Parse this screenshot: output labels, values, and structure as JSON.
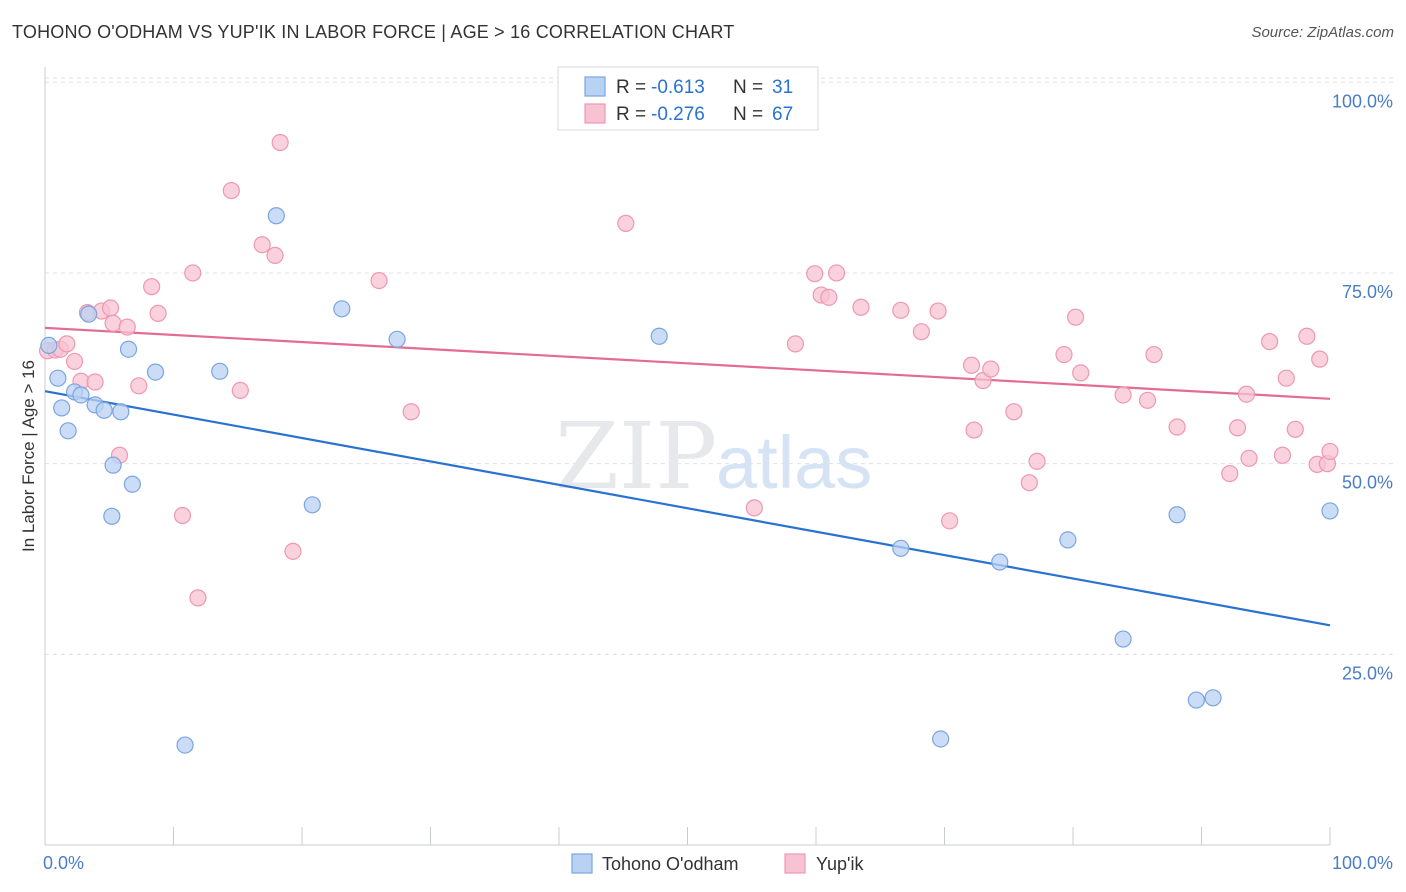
{
  "title": "TOHONO O'ODHAM VS YUP'IK IN LABOR FORCE | AGE > 16 CORRELATION CHART",
  "source": "Source: ZipAtlas.com",
  "watermark": {
    "zip": "ZIP",
    "atlas": "atlas"
  },
  "colors": {
    "blue_fill": "#b9d2f3",
    "blue_stroke": "#7aa5e0",
    "blue_line": "#2a72d2",
    "pink_fill": "#f7c3d3",
    "pink_stroke": "#ee97b3",
    "pink_line": "#e46b93",
    "tick": "#4a7cc9",
    "grid": "#dde0e6"
  },
  "legend": {
    "rows": [
      {
        "r_label": "R = ",
        "r_value": "-0.613",
        "n_label": "N = ",
        "n_value": "31"
      },
      {
        "r_label": "R = ",
        "r_value": "-0.276",
        "n_label": "N = ",
        "n_value": "67"
      }
    ]
  },
  "chart_data": {
    "type": "scatter",
    "title": "TOHONO O'ODHAM VS YUP'IK IN LABOR FORCE | AGE > 16 CORRELATION CHART",
    "xlabel": "",
    "ylabel": "In Labor Force | Age > 16",
    "xlim": [
      0,
      100
    ],
    "ylim": [
      0,
      102
    ],
    "x_tick_labels": [
      "0.0%",
      "100.0%"
    ],
    "y_ticks": [
      25,
      50,
      75,
      100
    ],
    "y_tick_labels": [
      "25.0%",
      "50.0%",
      "75.0%",
      "100.0%"
    ],
    "grid": true,
    "legend_position": "top-center",
    "series": [
      {
        "name": "Tohono O'odham",
        "color": "#b9d2f3",
        "trend": {
          "x": [
            0,
            100
          ],
          "y": [
            59.5,
            28.8
          ]
        },
        "points": [
          [
            0.3,
            65.5
          ],
          [
            1.0,
            61.2
          ],
          [
            1.3,
            57.3
          ],
          [
            1.8,
            54.3
          ],
          [
            2.3,
            59.4
          ],
          [
            2.8,
            59.0
          ],
          [
            3.4,
            69.6
          ],
          [
            3.9,
            57.7
          ],
          [
            4.6,
            57.0
          ],
          [
            5.2,
            43.1
          ],
          [
            5.3,
            49.8
          ],
          [
            5.9,
            56.8
          ],
          [
            6.5,
            65.0
          ],
          [
            6.8,
            47.3
          ],
          [
            8.6,
            62.0
          ],
          [
            10.9,
            13.1
          ],
          [
            13.6,
            62.1
          ],
          [
            18.0,
            82.5
          ],
          [
            20.8,
            44.6
          ],
          [
            23.1,
            70.3
          ],
          [
            27.4,
            66.3
          ],
          [
            47.8,
            66.7
          ],
          [
            66.6,
            38.9
          ],
          [
            69.7,
            13.9
          ],
          [
            74.3,
            37.1
          ],
          [
            79.6,
            40.0
          ],
          [
            83.9,
            27.0
          ],
          [
            88.1,
            43.3
          ],
          [
            89.6,
            19.0
          ],
          [
            90.9,
            19.3
          ],
          [
            100.0,
            43.8
          ]
        ]
      },
      {
        "name": "Yup'ik",
        "color": "#f7c3d3",
        "trend": {
          "x": [
            0,
            100
          ],
          "y": [
            67.8,
            58.5
          ]
        },
        "points": [
          [
            0.2,
            64.8
          ],
          [
            0.8,
            64.9
          ],
          [
            1.2,
            65.0
          ],
          [
            1.7,
            65.7
          ],
          [
            2.3,
            63.4
          ],
          [
            2.8,
            60.8
          ],
          [
            3.3,
            69.8
          ],
          [
            3.9,
            60.7
          ],
          [
            4.4,
            70.0
          ],
          [
            5.1,
            70.4
          ],
          [
            5.3,
            68.4
          ],
          [
            5.8,
            51.1
          ],
          [
            6.4,
            67.9
          ],
          [
            7.3,
            60.2
          ],
          [
            8.3,
            73.2
          ],
          [
            8.8,
            69.7
          ],
          [
            10.7,
            43.2
          ],
          [
            11.5,
            75.0
          ],
          [
            11.9,
            32.4
          ],
          [
            14.5,
            85.8
          ],
          [
            15.2,
            59.6
          ],
          [
            16.9,
            78.7
          ],
          [
            17.9,
            77.3
          ],
          [
            18.3,
            92.1
          ],
          [
            19.3,
            38.5
          ],
          [
            26.0,
            74.0
          ],
          [
            28.5,
            56.8
          ],
          [
            41.1,
            100.0
          ],
          [
            45.2,
            81.5
          ],
          [
            55.2,
            44.2
          ],
          [
            58.4,
            65.7
          ],
          [
            59.9,
            74.9
          ],
          [
            60.4,
            72.1
          ],
          [
            61.0,
            71.8
          ],
          [
            61.6,
            75.0
          ],
          [
            63.5,
            70.5
          ],
          [
            66.6,
            70.1
          ],
          [
            68.2,
            67.3
          ],
          [
            69.5,
            70.0
          ],
          [
            70.4,
            42.5
          ],
          [
            72.1,
            62.9
          ],
          [
            72.3,
            54.4
          ],
          [
            73.0,
            60.9
          ],
          [
            73.6,
            62.4
          ],
          [
            75.4,
            56.8
          ],
          [
            76.6,
            47.5
          ],
          [
            77.2,
            50.3
          ],
          [
            79.3,
            64.3
          ],
          [
            80.2,
            69.2
          ],
          [
            80.6,
            61.9
          ],
          [
            83.9,
            59.0
          ],
          [
            85.8,
            58.3
          ],
          [
            86.3,
            64.3
          ],
          [
            88.1,
            54.8
          ],
          [
            92.2,
            48.7
          ],
          [
            92.8,
            54.7
          ],
          [
            93.5,
            59.1
          ],
          [
            93.7,
            50.7
          ],
          [
            95.3,
            66.0
          ],
          [
            96.3,
            51.1
          ],
          [
            96.6,
            61.2
          ],
          [
            97.3,
            54.5
          ],
          [
            98.2,
            66.7
          ],
          [
            99.2,
            63.7
          ],
          [
            99.0,
            49.9
          ],
          [
            99.8,
            50.0
          ],
          [
            100.0,
            51.6
          ]
        ]
      }
    ]
  }
}
